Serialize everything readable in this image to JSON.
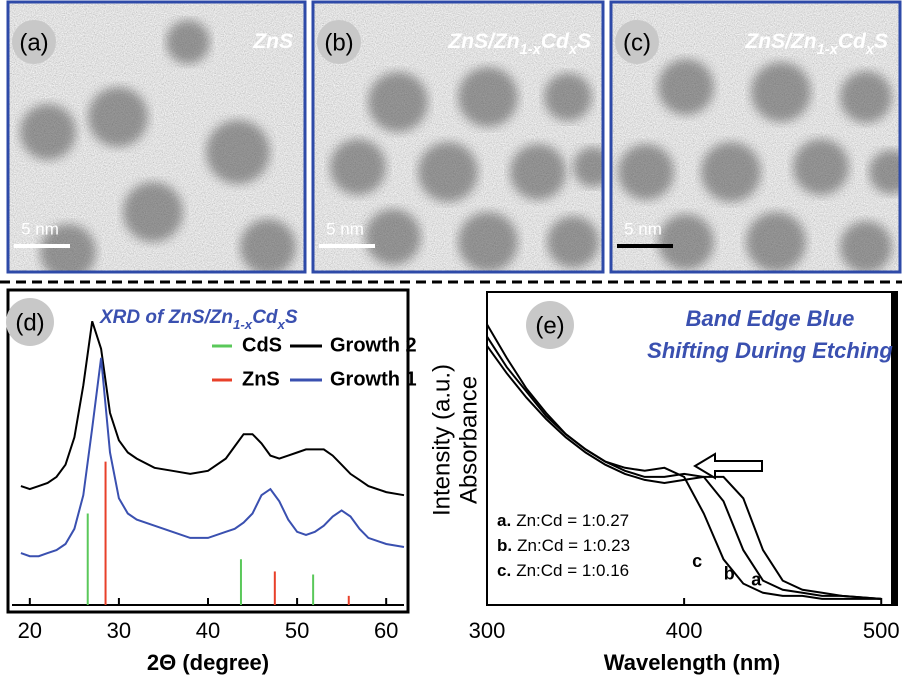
{
  "panels": [
    {
      "label": "(a)",
      "title": [
        "ZnS"
      ],
      "scale": "5 nm"
    },
    {
      "label": "(b)",
      "title": [
        "ZnS/Zn",
        "1-x",
        "Cd",
        "x",
        "S"
      ],
      "scale": "5 nm"
    },
    {
      "label": "(c)",
      "title": [
        "ZnS/Zn",
        "1-x",
        "Cd",
        "x",
        "S"
      ],
      "scale": "5 nm"
    }
  ],
  "chart_data": [
    {
      "type": "line",
      "label": "(d)",
      "title": [
        "XRD of ZnS/Zn",
        "1-x",
        "Cd",
        "x",
        "S"
      ],
      "xlabel": "2Θ (degree)",
      "xlim": [
        18,
        62
      ],
      "xticks": [
        20,
        30,
        40,
        50,
        60
      ],
      "ylim": [
        0,
        100
      ],
      "x": [
        19,
        20,
        21,
        22,
        23,
        24,
        25,
        26,
        27,
        28,
        29,
        30,
        31,
        32,
        34,
        36,
        38,
        40,
        42,
        43,
        44,
        45,
        46,
        47,
        48,
        49,
        50,
        51,
        52,
        53,
        54,
        55,
        56,
        57,
        58,
        60,
        62
      ],
      "series": [
        {
          "name": "Growth 2",
          "color": "#000000",
          "values": [
            39,
            38,
            39,
            40,
            42,
            46,
            55,
            72,
            93,
            84,
            63,
            54,
            50,
            48,
            45,
            44,
            43,
            44,
            48,
            52,
            56,
            56,
            53,
            49,
            48,
            49,
            50,
            51,
            51,
            51,
            49,
            46,
            43,
            41,
            39,
            37,
            36
          ]
        },
        {
          "name": "Growth 1",
          "color": "#3a50b0",
          "values": [
            17,
            16,
            16,
            17,
            18,
            20,
            25,
            36,
            58,
            81,
            50,
            35,
            30,
            28,
            26,
            24,
            22,
            22,
            24,
            25,
            27,
            30,
            36,
            38,
            34,
            28,
            24,
            23,
            24,
            26,
            29,
            31,
            29,
            25,
            22,
            20,
            19
          ]
        }
      ],
      "references": [
        {
          "name": "CdS",
          "color": "#5ac85a",
          "x": [
            26.5,
            43.7,
            51.8
          ],
          "values": [
            30,
            15,
            10
          ]
        },
        {
          "name": "ZnS",
          "color": "#e8402a",
          "x": [
            28.5,
            47.5,
            55.8
          ],
          "values": [
            47,
            11,
            3
          ]
        }
      ]
    },
    {
      "type": "line",
      "label": "(e)",
      "title": [
        "Band Edge Blue",
        "Shifting During Etching"
      ],
      "ylabels": [
        "Intensity (a.u.)",
        "Absorbance"
      ],
      "xlabel": "Wavelength (nm)",
      "xlim": [
        300,
        508
      ],
      "xticks": [
        300,
        400,
        500
      ],
      "ylim": [
        0,
        100
      ],
      "x": [
        300,
        310,
        320,
        330,
        340,
        350,
        360,
        370,
        380,
        390,
        400,
        410,
        420,
        430,
        440,
        450,
        460,
        470,
        480,
        500
      ],
      "series": [
        {
          "name": "a",
          "color": "#000000",
          "values": [
            85,
            76,
            68,
            61,
            55,
            50,
            46,
            43,
            41,
            40,
            41,
            42,
            42,
            35,
            18,
            8,
            5,
            4,
            3,
            2
          ]
        },
        {
          "name": "b",
          "color": "#000000",
          "values": [
            88,
            78,
            70,
            62,
            56,
            51,
            47,
            44,
            42,
            42,
            43,
            42,
            34,
            18,
            8,
            5,
            4,
            3,
            3,
            2
          ]
        },
        {
          "name": "c",
          "color": "#000000",
          "values": [
            92,
            81,
            71,
            63,
            56,
            51,
            47,
            45,
            44,
            45,
            42,
            30,
            15,
            7,
            4,
            3,
            3,
            2,
            2,
            2
          ]
        }
      ],
      "notes": [
        [
          "a.",
          "Zn:Cd = 1:0.27"
        ],
        [
          "b.",
          "Zn:Cd = 1:0.23"
        ],
        [
          "c.",
          "Zn:Cd = 1:0.16"
        ]
      ]
    }
  ]
}
